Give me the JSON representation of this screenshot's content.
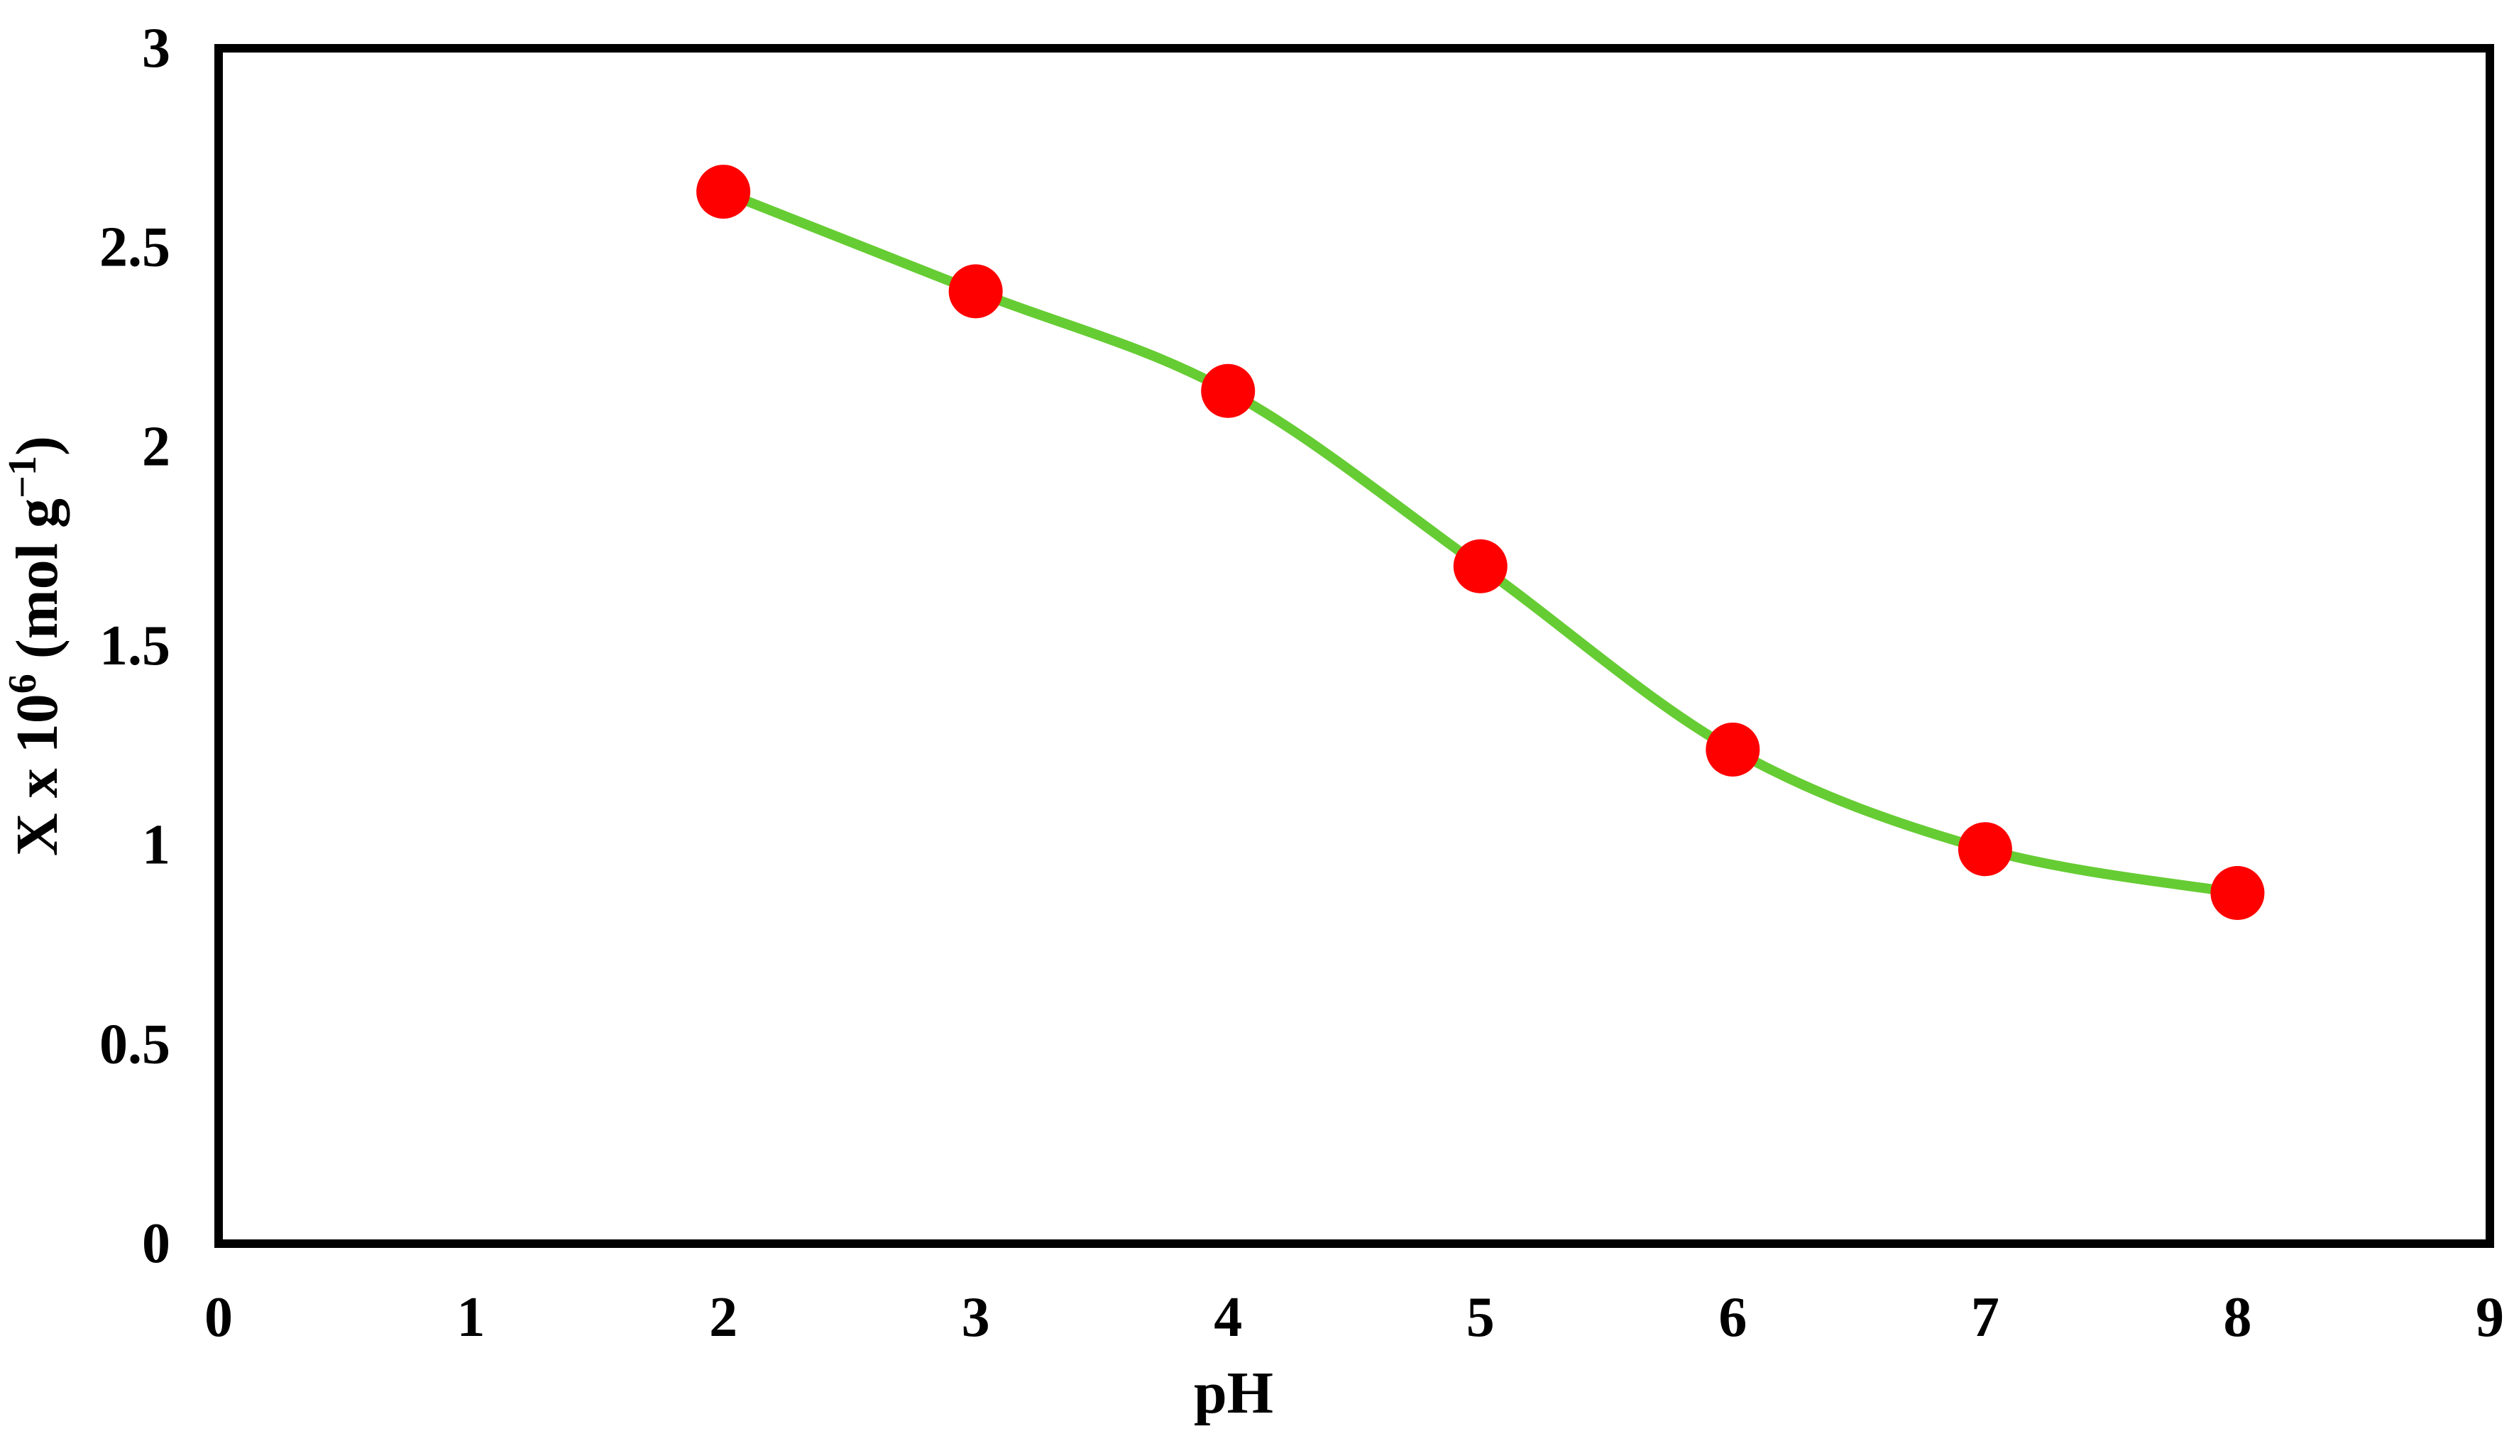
{
  "chart_data": {
    "type": "scatter",
    "title": "",
    "xlabel": "pH",
    "ylabel": {
      "base": "X x 10",
      "exponent": "6",
      "unit_open": " (mol g",
      "unit_exponent": "−1",
      "unit_close": ")"
    },
    "xlim": [
      0,
      9
    ],
    "ylim": [
      0,
      3
    ],
    "x_ticks": [
      "0",
      "1",
      "2",
      "3",
      "4",
      "5",
      "6",
      "7",
      "8",
      "9"
    ],
    "y_ticks": [
      "0",
      "0.5",
      "1",
      "1.5",
      "2",
      "2.5",
      "3"
    ],
    "grid": false,
    "legend": "none",
    "series": [
      {
        "x": [
          2,
          3,
          4,
          5,
          6,
          7,
          8
        ],
        "y": [
          2.64,
          2.39,
          2.14,
          1.7,
          1.24,
          0.99,
          0.88
        ],
        "line": "smooth",
        "line_color": "#66cc33",
        "marker_color": "#ff0000"
      }
    ]
  }
}
